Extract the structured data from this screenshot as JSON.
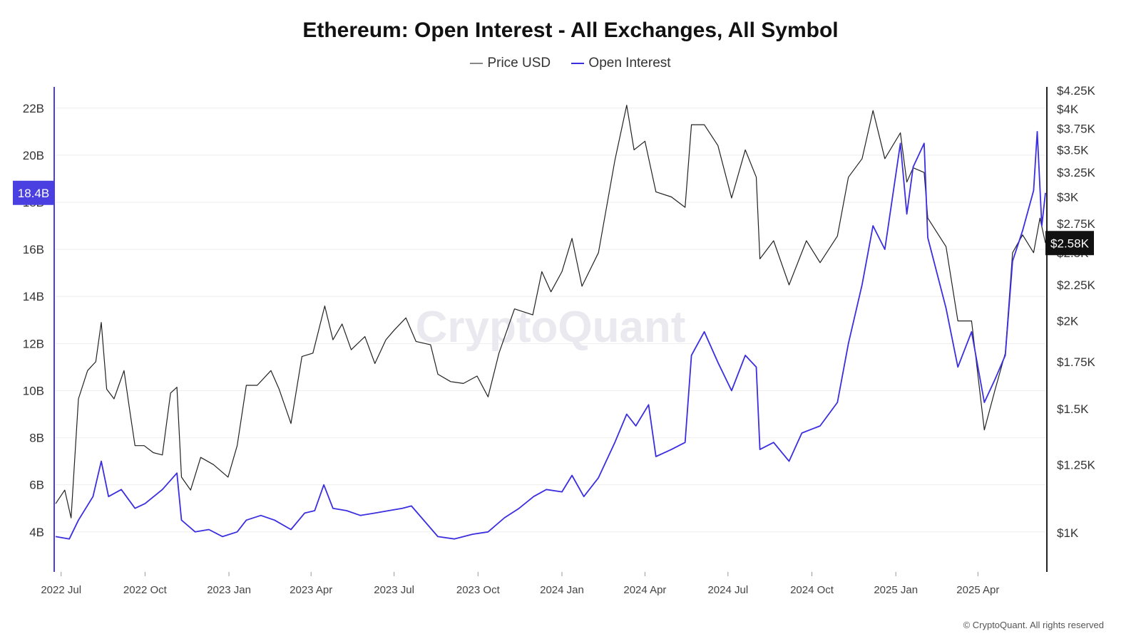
{
  "colors": {
    "price": "#222222",
    "oi": "#3b2ee0",
    "accent": "#4a3fe0",
    "grid": "#eeeeee"
  },
  "footer": {
    "copyright": "© CryptoQuant. All rights reserved"
  },
  "watermark": "CryptoQuant",
  "chart_data": {
    "type": "line",
    "title": "Ethereum: Open Interest - All Exchanges, All Symbol",
    "legend": [
      "Price USD",
      "Open Interest"
    ],
    "legend_position": "top-center",
    "x_ticks": [
      "2022 Jul",
      "2022 Oct",
      "2023 Jan",
      "2023 Apr",
      "2023 Jul",
      "2023 Oct",
      "2024 Jan",
      "2024 Apr",
      "2024 Jul",
      "2024 Oct",
      "2025 Jan",
      "2025 Apr"
    ],
    "x_range": [
      "2022-06-25",
      "2025-06-14"
    ],
    "left_axis": {
      "label": "",
      "ticks": [
        "4B",
        "6B",
        "8B",
        "10B",
        "12B",
        "14B",
        "16B",
        "18B",
        "20B",
        "22B"
      ],
      "range": [
        2.3,
        22.9
      ],
      "current": "18.4B"
    },
    "right_axis": {
      "label": "",
      "scale": "log",
      "ticks": [
        "$1K",
        "$1.25K",
        "$1.5K",
        "$1.75K",
        "$2K",
        "$2.25K",
        "$2.5K",
        "$2.75K",
        "$3K",
        "$3.25K",
        "$3.5K",
        "$3.75K",
        "$4K",
        "$4.25K"
      ],
      "range": [
        880,
        4300
      ],
      "current": "$2.58K"
    },
    "grid": true,
    "series": [
      {
        "name": "Price USD",
        "axis": "right",
        "points": [
          [
            "2022-06-25",
            1100
          ],
          [
            "2022-07-05",
            1150
          ],
          [
            "2022-07-12",
            1050
          ],
          [
            "2022-07-20",
            1550
          ],
          [
            "2022-07-30",
            1700
          ],
          [
            "2022-08-08",
            1750
          ],
          [
            "2022-08-14",
            1990
          ],
          [
            "2022-08-20",
            1600
          ],
          [
            "2022-08-28",
            1550
          ],
          [
            "2022-09-08",
            1700
          ],
          [
            "2022-09-14",
            1500
          ],
          [
            "2022-09-20",
            1330
          ],
          [
            "2022-09-30",
            1330
          ],
          [
            "2022-10-10",
            1300
          ],
          [
            "2022-10-20",
            1290
          ],
          [
            "2022-10-29",
            1580
          ],
          [
            "2022-11-05",
            1610
          ],
          [
            "2022-11-10",
            1200
          ],
          [
            "2022-11-20",
            1150
          ],
          [
            "2022-12-01",
            1280
          ],
          [
            "2022-12-15",
            1250
          ],
          [
            "2022-12-31",
            1200
          ],
          [
            "2023-01-10",
            1330
          ],
          [
            "2023-01-20",
            1620
          ],
          [
            "2023-02-01",
            1620
          ],
          [
            "2023-02-16",
            1700
          ],
          [
            "2023-02-25",
            1600
          ],
          [
            "2023-03-10",
            1430
          ],
          [
            "2023-03-22",
            1780
          ],
          [
            "2023-04-03",
            1800
          ],
          [
            "2023-04-16",
            2100
          ],
          [
            "2023-04-25",
            1880
          ],
          [
            "2023-05-05",
            1980
          ],
          [
            "2023-05-15",
            1820
          ],
          [
            "2023-05-30",
            1900
          ],
          [
            "2023-06-10",
            1740
          ],
          [
            "2023-06-22",
            1880
          ],
          [
            "2023-07-01",
            1940
          ],
          [
            "2023-07-14",
            2020
          ],
          [
            "2023-07-25",
            1870
          ],
          [
            "2023-08-10",
            1850
          ],
          [
            "2023-08-18",
            1680
          ],
          [
            "2023-09-01",
            1640
          ],
          [
            "2023-09-15",
            1630
          ],
          [
            "2023-09-30",
            1670
          ],
          [
            "2023-10-12",
            1560
          ],
          [
            "2023-10-24",
            1800
          ],
          [
            "2023-11-10",
            2080
          ],
          [
            "2023-11-30",
            2040
          ],
          [
            "2023-12-10",
            2350
          ],
          [
            "2023-12-20",
            2200
          ],
          [
            "2024-01-01",
            2350
          ],
          [
            "2024-01-12",
            2620
          ],
          [
            "2024-01-23",
            2240
          ],
          [
            "2024-02-10",
            2500
          ],
          [
            "2024-02-28",
            3380
          ],
          [
            "2024-03-12",
            4050
          ],
          [
            "2024-03-20",
            3500
          ],
          [
            "2024-04-01",
            3600
          ],
          [
            "2024-04-13",
            3050
          ],
          [
            "2024-04-30",
            3000
          ],
          [
            "2024-05-15",
            2900
          ],
          [
            "2024-05-22",
            3800
          ],
          [
            "2024-06-05",
            3800
          ],
          [
            "2024-06-20",
            3550
          ],
          [
            "2024-07-05",
            2990
          ],
          [
            "2024-07-20",
            3500
          ],
          [
            "2024-08-01",
            3200
          ],
          [
            "2024-08-05",
            2450
          ],
          [
            "2024-08-20",
            2600
          ],
          [
            "2024-09-06",
            2250
          ],
          [
            "2024-09-25",
            2600
          ],
          [
            "2024-10-10",
            2420
          ],
          [
            "2024-10-29",
            2640
          ],
          [
            "2024-11-10",
            3200
          ],
          [
            "2024-11-25",
            3400
          ],
          [
            "2024-12-07",
            3980
          ],
          [
            "2024-12-20",
            3400
          ],
          [
            "2025-01-06",
            3700
          ],
          [
            "2025-01-13",
            3150
          ],
          [
            "2025-01-20",
            3300
          ],
          [
            "2025-02-01",
            3250
          ],
          [
            "2025-02-05",
            2800
          ],
          [
            "2025-02-25",
            2550
          ],
          [
            "2025-03-10",
            2000
          ],
          [
            "2025-03-25",
            2000
          ],
          [
            "2025-04-08",
            1400
          ],
          [
            "2025-04-20",
            1600
          ],
          [
            "2025-05-01",
            1800
          ],
          [
            "2025-05-09",
            2500
          ],
          [
            "2025-05-20",
            2650
          ],
          [
            "2025-06-01",
            2500
          ],
          [
            "2025-06-08",
            2800
          ],
          [
            "2025-06-14",
            2580
          ]
        ]
      },
      {
        "name": "Open Interest",
        "axis": "left",
        "points": [
          [
            "2022-06-25",
            3.8
          ],
          [
            "2022-07-10",
            3.7
          ],
          [
            "2022-07-20",
            4.5
          ],
          [
            "2022-08-05",
            5.5
          ],
          [
            "2022-08-14",
            7.0
          ],
          [
            "2022-08-22",
            5.5
          ],
          [
            "2022-09-05",
            5.8
          ],
          [
            "2022-09-20",
            5.0
          ],
          [
            "2022-10-01",
            5.2
          ],
          [
            "2022-10-20",
            5.8
          ],
          [
            "2022-11-05",
            6.5
          ],
          [
            "2022-11-10",
            4.5
          ],
          [
            "2022-11-25",
            4.0
          ],
          [
            "2022-12-10",
            4.1
          ],
          [
            "2022-12-25",
            3.8
          ],
          [
            "2023-01-10",
            4.0
          ],
          [
            "2023-01-20",
            4.5
          ],
          [
            "2023-02-05",
            4.7
          ],
          [
            "2023-02-20",
            4.5
          ],
          [
            "2023-03-10",
            4.1
          ],
          [
            "2023-03-25",
            4.8
          ],
          [
            "2023-04-05",
            4.9
          ],
          [
            "2023-04-15",
            6.0
          ],
          [
            "2023-04-25",
            5.0
          ],
          [
            "2023-05-10",
            4.9
          ],
          [
            "2023-05-25",
            4.7
          ],
          [
            "2023-06-10",
            4.8
          ],
          [
            "2023-06-25",
            4.9
          ],
          [
            "2023-07-10",
            5.0
          ],
          [
            "2023-07-20",
            5.1
          ],
          [
            "2023-08-18",
            3.8
          ],
          [
            "2023-09-05",
            3.7
          ],
          [
            "2023-09-25",
            3.9
          ],
          [
            "2023-10-12",
            4.0
          ],
          [
            "2023-10-30",
            4.6
          ],
          [
            "2023-11-15",
            5.0
          ],
          [
            "2023-12-01",
            5.5
          ],
          [
            "2023-12-15",
            5.8
          ],
          [
            "2024-01-01",
            5.7
          ],
          [
            "2024-01-12",
            6.4
          ],
          [
            "2024-01-25",
            5.5
          ],
          [
            "2024-02-10",
            6.3
          ],
          [
            "2024-02-28",
            7.8
          ],
          [
            "2024-03-12",
            9.0
          ],
          [
            "2024-03-22",
            8.5
          ],
          [
            "2024-04-05",
            9.4
          ],
          [
            "2024-04-13",
            7.2
          ],
          [
            "2024-04-30",
            7.5
          ],
          [
            "2024-05-15",
            7.8
          ],
          [
            "2024-05-22",
            11.5
          ],
          [
            "2024-06-05",
            12.5
          ],
          [
            "2024-06-20",
            11.2
          ],
          [
            "2024-07-05",
            10.0
          ],
          [
            "2024-07-20",
            11.5
          ],
          [
            "2024-08-01",
            11.0
          ],
          [
            "2024-08-05",
            7.5
          ],
          [
            "2024-08-20",
            7.8
          ],
          [
            "2024-09-06",
            7.0
          ],
          [
            "2024-09-20",
            8.2
          ],
          [
            "2024-10-10",
            8.5
          ],
          [
            "2024-10-29",
            9.5
          ],
          [
            "2024-11-10",
            12.0
          ],
          [
            "2024-11-25",
            14.5
          ],
          [
            "2024-12-07",
            17.0
          ],
          [
            "2024-12-20",
            16.0
          ],
          [
            "2025-01-06",
            20.5
          ],
          [
            "2025-01-13",
            17.5
          ],
          [
            "2025-01-20",
            19.5
          ],
          [
            "2025-02-01",
            20.5
          ],
          [
            "2025-02-05",
            16.5
          ],
          [
            "2025-02-25",
            13.5
          ],
          [
            "2025-03-10",
            11.0
          ],
          [
            "2025-03-25",
            12.5
          ],
          [
            "2025-04-08",
            9.5
          ],
          [
            "2025-04-20",
            10.5
          ],
          [
            "2025-05-01",
            11.5
          ],
          [
            "2025-05-09",
            15.5
          ],
          [
            "2025-05-20",
            16.8
          ],
          [
            "2025-06-01",
            18.5
          ],
          [
            "2025-06-05",
            21.0
          ],
          [
            "2025-06-10",
            17.0
          ],
          [
            "2025-06-14",
            18.4
          ]
        ]
      }
    ]
  }
}
